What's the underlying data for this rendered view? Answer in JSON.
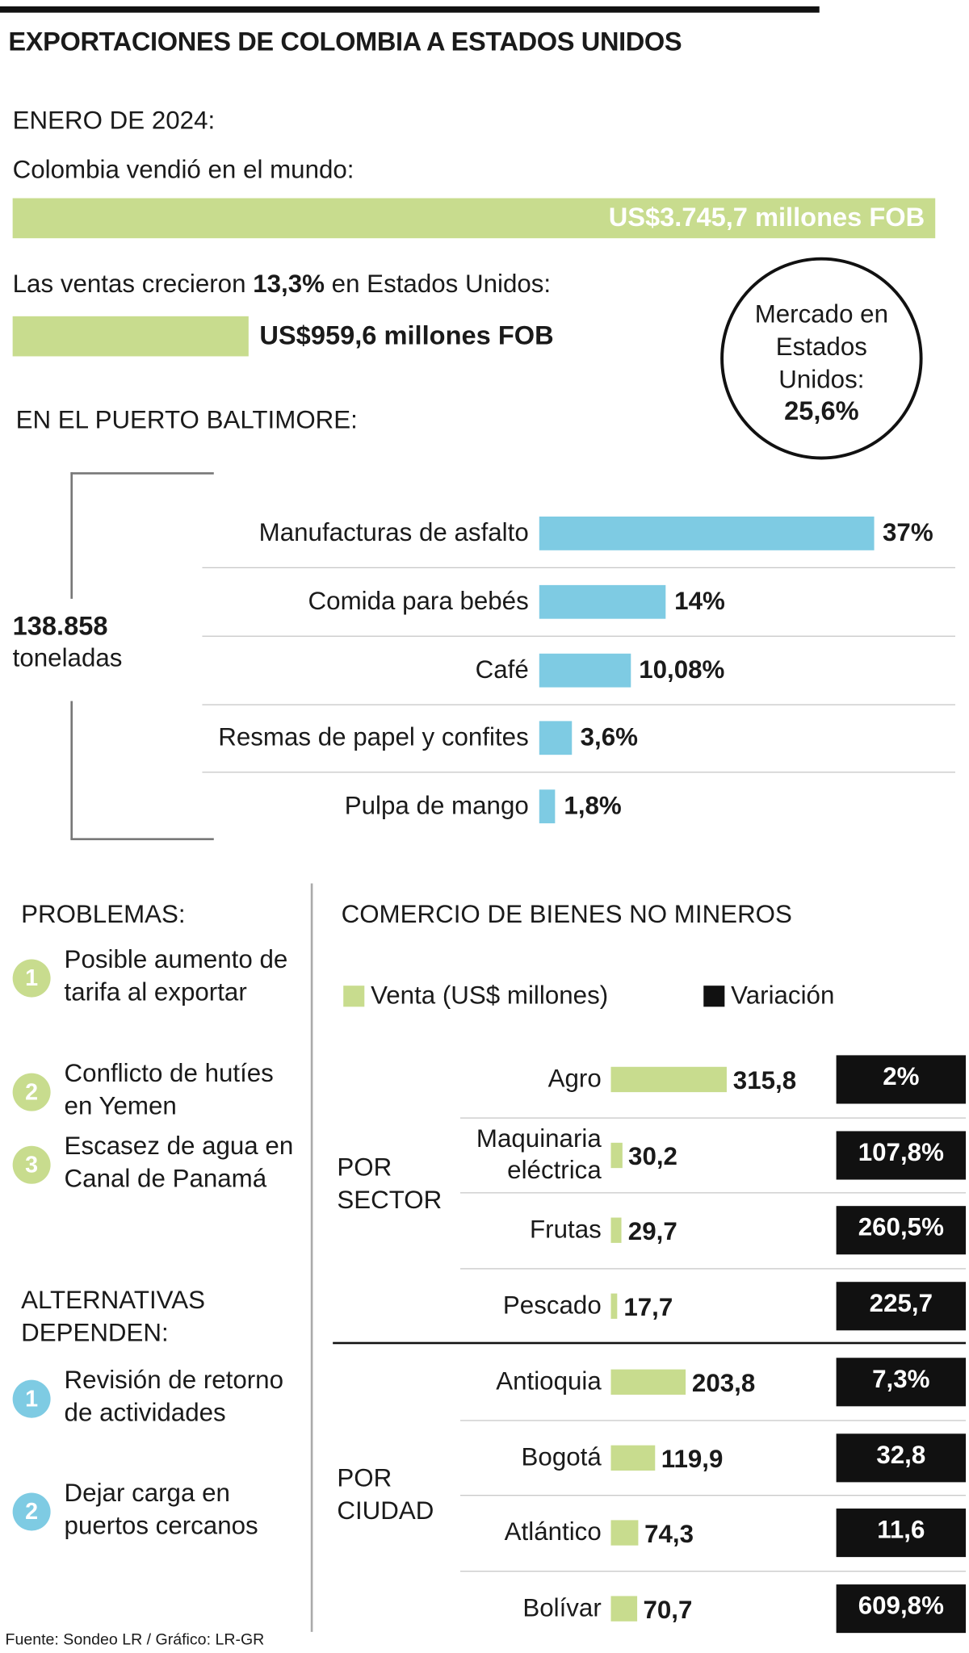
{
  "title": "EXPORTACIONES DE COLOMBIA A ESTADOS UNIDOS",
  "summary": {
    "heading": "ENERO DE 2024:",
    "world_label": "Colombia vendió en el mundo:",
    "us_label": [
      "Las ventas crecieron",
      "13,3%",
      "en Estados Unidos:"
    ]
  },
  "market_share": {
    "label": "Mercado en Estados Unidos:",
    "value": "25,6%"
  },
  "problems": {
    "title": "PROBLEMAS:",
    "items": [
      {
        "number": "1",
        "text": "Posible aumento de tarifa al exportar"
      },
      {
        "number": "2",
        "text": "Conflicto de hutíes en Yemen"
      },
      {
        "number": "3",
        "text": "Escasez de agua en Canal de Panamá"
      }
    ]
  },
  "alternatives": {
    "title": "ALTERNATIVAS DEPENDEN:",
    "items": [
      {
        "number": "1",
        "text": "Revisión de retorno de actividades"
      },
      {
        "number": "2",
        "text": "Dejar carga en puertos cercanos"
      }
    ]
  },
  "source": "Fuente: Sondeo LR / Gráfico: LR-GR",
  "chart_data": [
    {
      "type": "bar",
      "orientation": "horizontal",
      "color": "#c8dc8e",
      "values": [
        3745.7,
        959.6
      ],
      "value_labels": [
        "US$3.745,7 millones FOB",
        "US$959,6 millones FOB"
      ]
    },
    {
      "type": "bar",
      "orientation": "horizontal",
      "title": "EN EL PUERTO BALTIMORE:",
      "total": "138.858",
      "total_unit": "toneladas",
      "color": "#7ecbe3",
      "categories": [
        "Manufacturas de asfalto",
        "Comida para bebés",
        "Café",
        "Resmas de papel y confites",
        "Pulpa de mango"
      ],
      "values": [
        37,
        14,
        10.08,
        3.6,
        1.8
      ],
      "value_labels": [
        "37%",
        "14%",
        "10,08%",
        "3,6%",
        "1,8%"
      ]
    },
    {
      "type": "bar",
      "orientation": "horizontal",
      "title": "COMERCIO DE BIENES NO MINEROS",
      "series": [
        {
          "name": "Venta (US$ millones)",
          "color": "#c8dc8e"
        },
        {
          "name": "Variación",
          "color": "#111111"
        }
      ],
      "groups": [
        {
          "label": "POR SECTOR",
          "categories": [
            "Agro",
            "Maquinaria eléctrica",
            "Frutas",
            "Pescado"
          ],
          "series": [
            {
              "values": [
                315.8,
                30.2,
                29.7,
                17.7
              ],
              "value_labels": [
                "315,8",
                "30,2",
                "29,7",
                "17,7"
              ]
            },
            {
              "values": [
                2,
                107.8,
                260.5,
                225.7
              ],
              "value_labels": [
                "2%",
                "107,8%",
                "260,5%",
                "225,7"
              ]
            }
          ]
        },
        {
          "label": "POR CIUDAD",
          "categories": [
            "Antioquia",
            "Bogotá",
            "Atlántico",
            "Bolívar"
          ],
          "series": [
            {
              "values": [
                203.8,
                119.9,
                74.3,
                70.7
              ],
              "value_labels": [
                "203,8",
                "119,9",
                "74,3",
                "70,7"
              ]
            },
            {
              "values": [
                7.3,
                32.8,
                11.6,
                609.8
              ],
              "value_labels": [
                "7,3%",
                "32,8",
                "11,6",
                "609,8%"
              ]
            }
          ]
        }
      ]
    }
  ]
}
